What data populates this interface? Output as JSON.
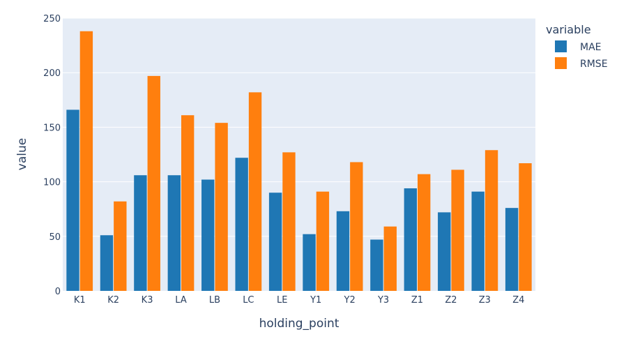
{
  "chart_data": {
    "type": "bar",
    "categories": [
      "K1",
      "K2",
      "K3",
      "LA",
      "LB",
      "LC",
      "LE",
      "Y1",
      "Y2",
      "Y3",
      "Z1",
      "Z2",
      "Z3",
      "Z4"
    ],
    "series": [
      {
        "name": "MAE",
        "color": "#1f77b4",
        "values": [
          166,
          51,
          106,
          106,
          102,
          122,
          90,
          52,
          73,
          47,
          94,
          72,
          91,
          76
        ]
      },
      {
        "name": "RMSE",
        "color": "#ff7f0e",
        "values": [
          238,
          82,
          197,
          161,
          154,
          182,
          127,
          91,
          118,
          59,
          107,
          111,
          129,
          117
        ]
      }
    ],
    "xlabel": "holding_point",
    "ylabel": "value",
    "ylim": [
      0,
      250
    ],
    "yticks": [
      0,
      50,
      100,
      150,
      200,
      250
    ],
    "legend_title": "variable",
    "legend_position": "top-right",
    "grid": true,
    "barmode": "group",
    "plot_background": "#e5ecf6"
  }
}
